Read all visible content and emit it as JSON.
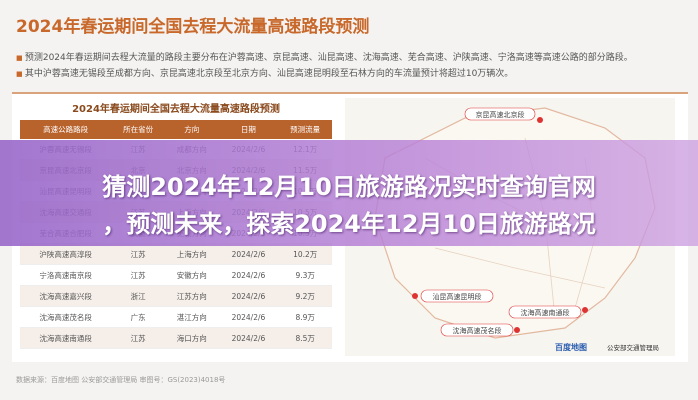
{
  "header": {
    "title": "2024年春运期间全国去程大流量高速路段预测"
  },
  "bullets": [
    "预测2024年春运期间去程大流量的路段主要分布在沪蓉高速、京昆高速、汕昆高速、沈海高速、芜合高速、沪陕高速、宁洛高速等高速公路的部分路段。",
    "其中沪蓉高速无锡段至成都方向、京昆高速北京段至北京方向、汕昆高速昆明段至石林方向的车流量预计将超过10万辆次。"
  ],
  "table": {
    "title": "2024年春运期间全国去程大流量高速路段预测",
    "columns": [
      "高速公路路段",
      "所在省份",
      "方向",
      "日期",
      "预测流量"
    ],
    "rows": [
      [
        "沪蓉高速无锡段",
        "江苏",
        "成都方向",
        "2024/2/6",
        "12.1万"
      ],
      [
        "京昆高速北京段",
        "北京",
        "北京方向",
        "2024/2/6",
        "11.5万"
      ],
      [
        "汕昆高速昆明段",
        "云南",
        "石林方向",
        "2024/2/6",
        "10.8万"
      ],
      [
        "沈海高速交通段",
        "江苏",
        "上海方向",
        "2024/2/6",
        "10.5万"
      ],
      [
        "芜合高速合肥段",
        "安徽",
        "芜湖方向",
        "2024/2/6",
        "10.3万"
      ],
      [
        "沪陕高速高淳段",
        "江苏",
        "上海方向",
        "2024/2/6",
        "10.2万"
      ],
      [
        "宁洛高速南京段",
        "江苏",
        "安徽方向",
        "2024/2/6",
        "9.3万"
      ],
      [
        "沈海高速嘉兴段",
        "浙江",
        "江苏方向",
        "2024/2/6",
        "9.2万"
      ],
      [
        "沈海高速茂名段",
        "广东",
        "湛江方向",
        "2024/2/6",
        "8.9万"
      ],
      [
        "沈海高速南通段",
        "江苏",
        "海口方向",
        "2024/2/6",
        "8.5万"
      ]
    ]
  },
  "map": {
    "labels": [
      "京昆高速北京段",
      "汕昆高速昆明段",
      "沈海高速茂名段",
      "沈海高速南通段"
    ],
    "logos": [
      "百度地图",
      "公安部交通管理局"
    ]
  },
  "footer": {
    "source": "数据来源：百度地图 公安部交通管理局 审图号：GS(2023)4018号"
  },
  "overlay": {
    "lines": [
      "猜测2024年12月10日旅游路况实时查询官网",
      "，预测未来，探索2024年12月10日旅游路况"
    ]
  }
}
